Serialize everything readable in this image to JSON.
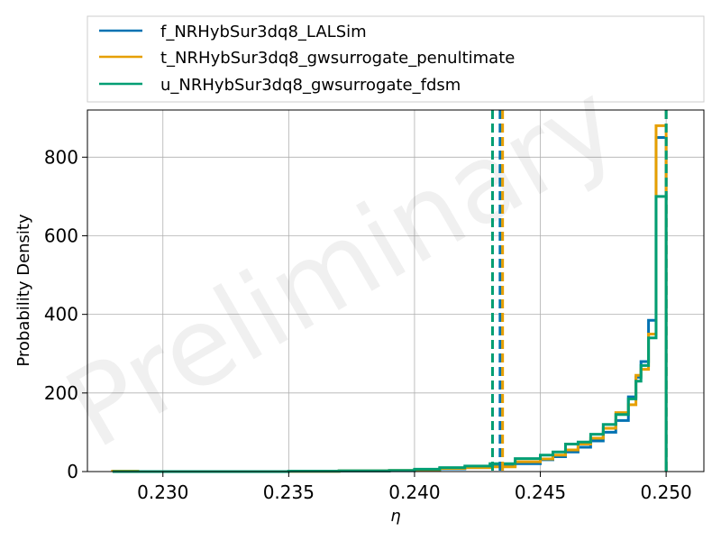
{
  "chart_data": {
    "type": "histogram",
    "xlabel": "η",
    "ylabel": "Probability Density",
    "xlim": [
      0.227,
      0.2515
    ],
    "ylim": [
      0,
      920
    ],
    "xticks": [
      "0.230",
      "0.235",
      "0.240",
      "0.245",
      "0.250"
    ],
    "xtick_values": [
      0.23,
      0.235,
      0.24,
      0.245,
      0.25
    ],
    "yticks": [
      "0",
      "200",
      "400",
      "600",
      "800"
    ],
    "ytick_values": [
      0,
      200,
      400,
      600,
      800
    ],
    "grid": true,
    "legend_position": "above-plot",
    "watermark": "Preliminary",
    "series": [
      {
        "name": "f_NRHybSur3dq8_LALSim",
        "color": "#0072b2",
        "median": 0.2434,
        "bins": [
          [
            0.228,
            0.229,
            1
          ],
          [
            0.229,
            0.23,
            0
          ],
          [
            0.23,
            0.235,
            0
          ],
          [
            0.235,
            0.237,
            0.5
          ],
          [
            0.237,
            0.239,
            1
          ],
          [
            0.239,
            0.24,
            2
          ],
          [
            0.24,
            0.241,
            4
          ],
          [
            0.241,
            0.242,
            7
          ],
          [
            0.242,
            0.243,
            10
          ],
          [
            0.243,
            0.244,
            14
          ],
          [
            0.244,
            0.245,
            20
          ],
          [
            0.245,
            0.2455,
            30
          ],
          [
            0.2455,
            0.246,
            38
          ],
          [
            0.246,
            0.2465,
            50
          ],
          [
            0.2465,
            0.247,
            62
          ],
          [
            0.247,
            0.2475,
            78
          ],
          [
            0.2475,
            0.248,
            100
          ],
          [
            0.248,
            0.2485,
            130
          ],
          [
            0.2485,
            0.2488,
            190
          ],
          [
            0.2488,
            0.249,
            240
          ],
          [
            0.249,
            0.2493,
            280
          ],
          [
            0.2493,
            0.2496,
            385
          ],
          [
            0.2496,
            0.25,
            850
          ]
        ]
      },
      {
        "name": "t_NRHybSur3dq8_gwsurrogate_penultimate",
        "color": "#e69f00",
        "median": 0.2435,
        "bins": [
          [
            0.228,
            0.229,
            1
          ],
          [
            0.229,
            0.23,
            0
          ],
          [
            0.23,
            0.235,
            0
          ],
          [
            0.235,
            0.237,
            0.5
          ],
          [
            0.237,
            0.239,
            2
          ],
          [
            0.239,
            0.24,
            3
          ],
          [
            0.24,
            0.241,
            5
          ],
          [
            0.241,
            0.242,
            8
          ],
          [
            0.242,
            0.243,
            10
          ],
          [
            0.243,
            0.244,
            12
          ],
          [
            0.244,
            0.245,
            25
          ],
          [
            0.245,
            0.2455,
            32
          ],
          [
            0.2455,
            0.246,
            42
          ],
          [
            0.246,
            0.2465,
            55
          ],
          [
            0.2465,
            0.247,
            70
          ],
          [
            0.247,
            0.2475,
            85
          ],
          [
            0.2475,
            0.248,
            110
          ],
          [
            0.248,
            0.2485,
            150
          ],
          [
            0.2485,
            0.2488,
            170
          ],
          [
            0.2488,
            0.249,
            245
          ],
          [
            0.249,
            0.2493,
            260
          ],
          [
            0.2493,
            0.2496,
            350
          ],
          [
            0.2496,
            0.25,
            880
          ]
        ]
      },
      {
        "name": "u_NRHybSur3dq8_gwsurrogate_fdsm",
        "color": "#009e73",
        "median": 0.2431,
        "bins": [
          [
            0.228,
            0.229,
            0
          ],
          [
            0.229,
            0.23,
            0
          ],
          [
            0.23,
            0.235,
            0
          ],
          [
            0.235,
            0.237,
            1
          ],
          [
            0.237,
            0.239,
            2
          ],
          [
            0.239,
            0.24,
            3
          ],
          [
            0.24,
            0.241,
            6
          ],
          [
            0.241,
            0.242,
            10
          ],
          [
            0.242,
            0.243,
            14
          ],
          [
            0.243,
            0.244,
            20
          ],
          [
            0.244,
            0.245,
            33
          ],
          [
            0.245,
            0.2455,
            42
          ],
          [
            0.2455,
            0.246,
            50
          ],
          [
            0.246,
            0.2465,
            70
          ],
          [
            0.2465,
            0.247,
            75
          ],
          [
            0.247,
            0.2475,
            95
          ],
          [
            0.2475,
            0.248,
            120
          ],
          [
            0.248,
            0.2485,
            145
          ],
          [
            0.2485,
            0.2488,
            185
          ],
          [
            0.2488,
            0.249,
            230
          ],
          [
            0.249,
            0.2493,
            270
          ],
          [
            0.2493,
            0.2496,
            340
          ],
          [
            0.2496,
            0.25,
            700
          ]
        ]
      }
    ]
  }
}
